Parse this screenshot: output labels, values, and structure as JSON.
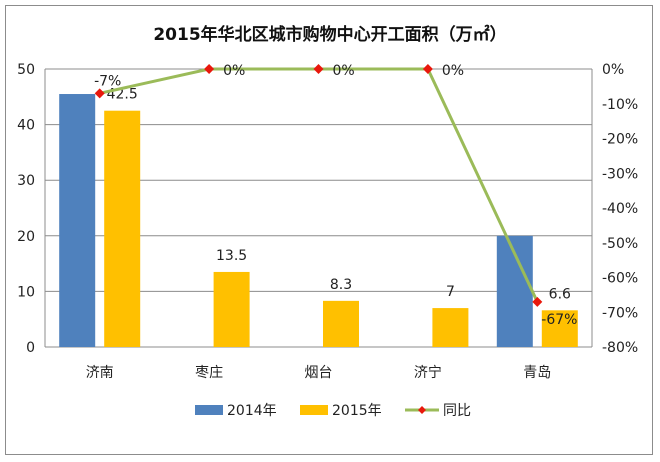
{
  "chart_data": {
    "type": "bar",
    "title": "2015年华北区城市购物中心开工面积（万㎡）",
    "categories": [
      "济南",
      "枣庄",
      "烟台",
      "济宁",
      "青岛"
    ],
    "series": [
      {
        "name": "2014年",
        "kind": "bar",
        "axis": "left",
        "color": "#4f81bd",
        "values": [
          45.5,
          null,
          null,
          null,
          20
        ]
      },
      {
        "name": "2015年",
        "kind": "bar",
        "axis": "left",
        "color": "#ffc000",
        "values": [
          42.5,
          13.5,
          8.3,
          7,
          6.6
        ]
      },
      {
        "name": "同比",
        "kind": "line",
        "axis": "right",
        "color": "#9bbb59",
        "marker_color": "#e8180c",
        "values": [
          -7,
          0,
          0,
          0,
          -67
        ]
      }
    ],
    "bar_data_labels": [
      "42.5",
      "13.5",
      "8.3",
      "7",
      "6.6"
    ],
    "line_data_labels": [
      "-7%",
      "0%",
      "0%",
      "0%",
      "-67%"
    ],
    "y_left": {
      "ylim": [
        0,
        50
      ],
      "ticks": [
        "0",
        "10",
        "20",
        "30",
        "40",
        "50"
      ]
    },
    "y_right": {
      "ylim": [
        -80,
        0
      ],
      "ticks": [
        "0%",
        "-10%",
        "-20%",
        "-30%",
        "-40%",
        "-50%",
        "-60%",
        "-70%",
        "-80%"
      ]
    },
    "grid": true,
    "legend_position": "bottom"
  }
}
